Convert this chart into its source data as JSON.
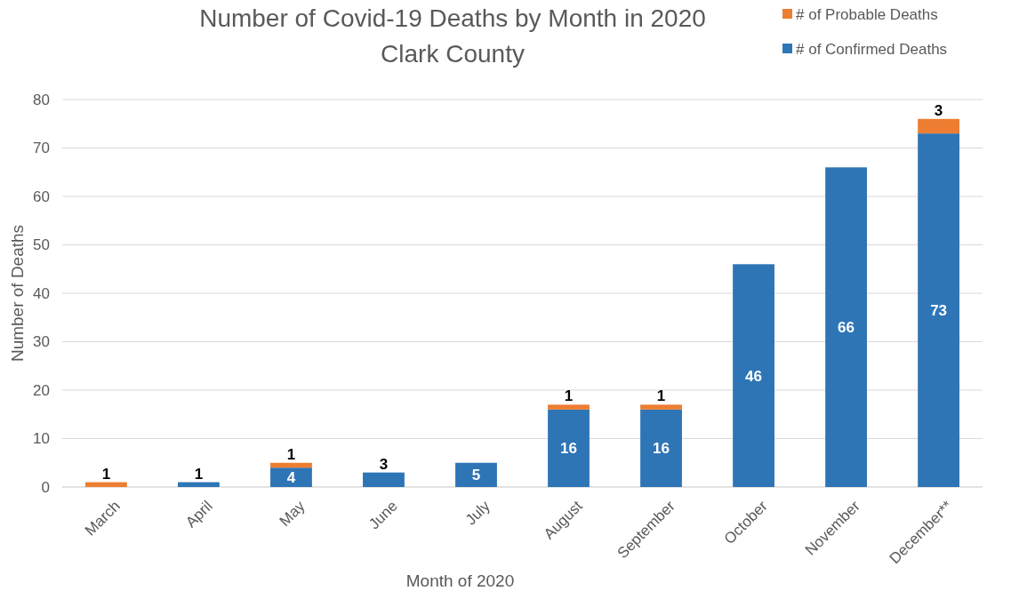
{
  "chart_data": {
    "type": "bar",
    "stacked": true,
    "title": "Number of Covid-19 Deaths by Month in 2020\nClark County",
    "xlabel": "Month of 2020",
    "ylabel": "Number of Deaths",
    "categories": [
      "March",
      "April",
      "May",
      "June",
      "July",
      "August",
      "September",
      "October",
      "November",
      "December**"
    ],
    "series": [
      {
        "name": "# of Confirmed Deaths",
        "color": "#2e75b6",
        "values": [
          0,
          1,
          4,
          3,
          5,
          16,
          16,
          46,
          66,
          73
        ],
        "value_labels": [
          null,
          "1",
          "4",
          "3",
          "5",
          "16",
          "16",
          "46",
          "66",
          "73"
        ]
      },
      {
        "name": "# of Probable Deaths",
        "color": "#ed7d31",
        "values": [
          1,
          null,
          1,
          null,
          null,
          1,
          1,
          null,
          null,
          3
        ],
        "value_labels": [
          "1",
          null,
          "1",
          null,
          null,
          "1",
          "1",
          null,
          null,
          "3"
        ]
      }
    ],
    "ylim": [
      0,
      80
    ],
    "yticks": [
      0,
      10,
      20,
      30,
      40,
      50,
      60,
      70,
      80
    ],
    "grid": "y",
    "legend": "top right"
  }
}
